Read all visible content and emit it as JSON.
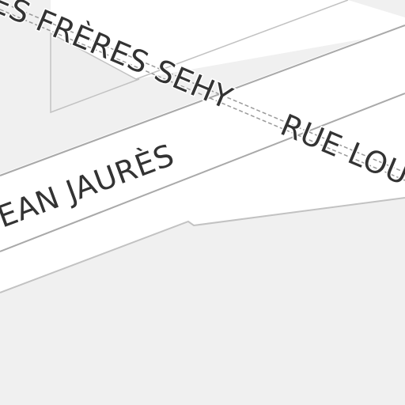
{
  "map": {
    "colors": {
      "background": "#f0f0f0",
      "road_fill": "#ffffff",
      "road_casing": "#b4b4b4",
      "label_text": "#333333",
      "label_halo": "#ffffff"
    },
    "roads": [
      {
        "id": "avenue-jean-jaures",
        "label": "JEAN JAURÈS"
      },
      {
        "id": "rue-des-freres-sehy",
        "label": "ES FRÈRES SEHY"
      },
      {
        "id": "rue-lo",
        "label": "RUE LOU"
      }
    ]
  }
}
